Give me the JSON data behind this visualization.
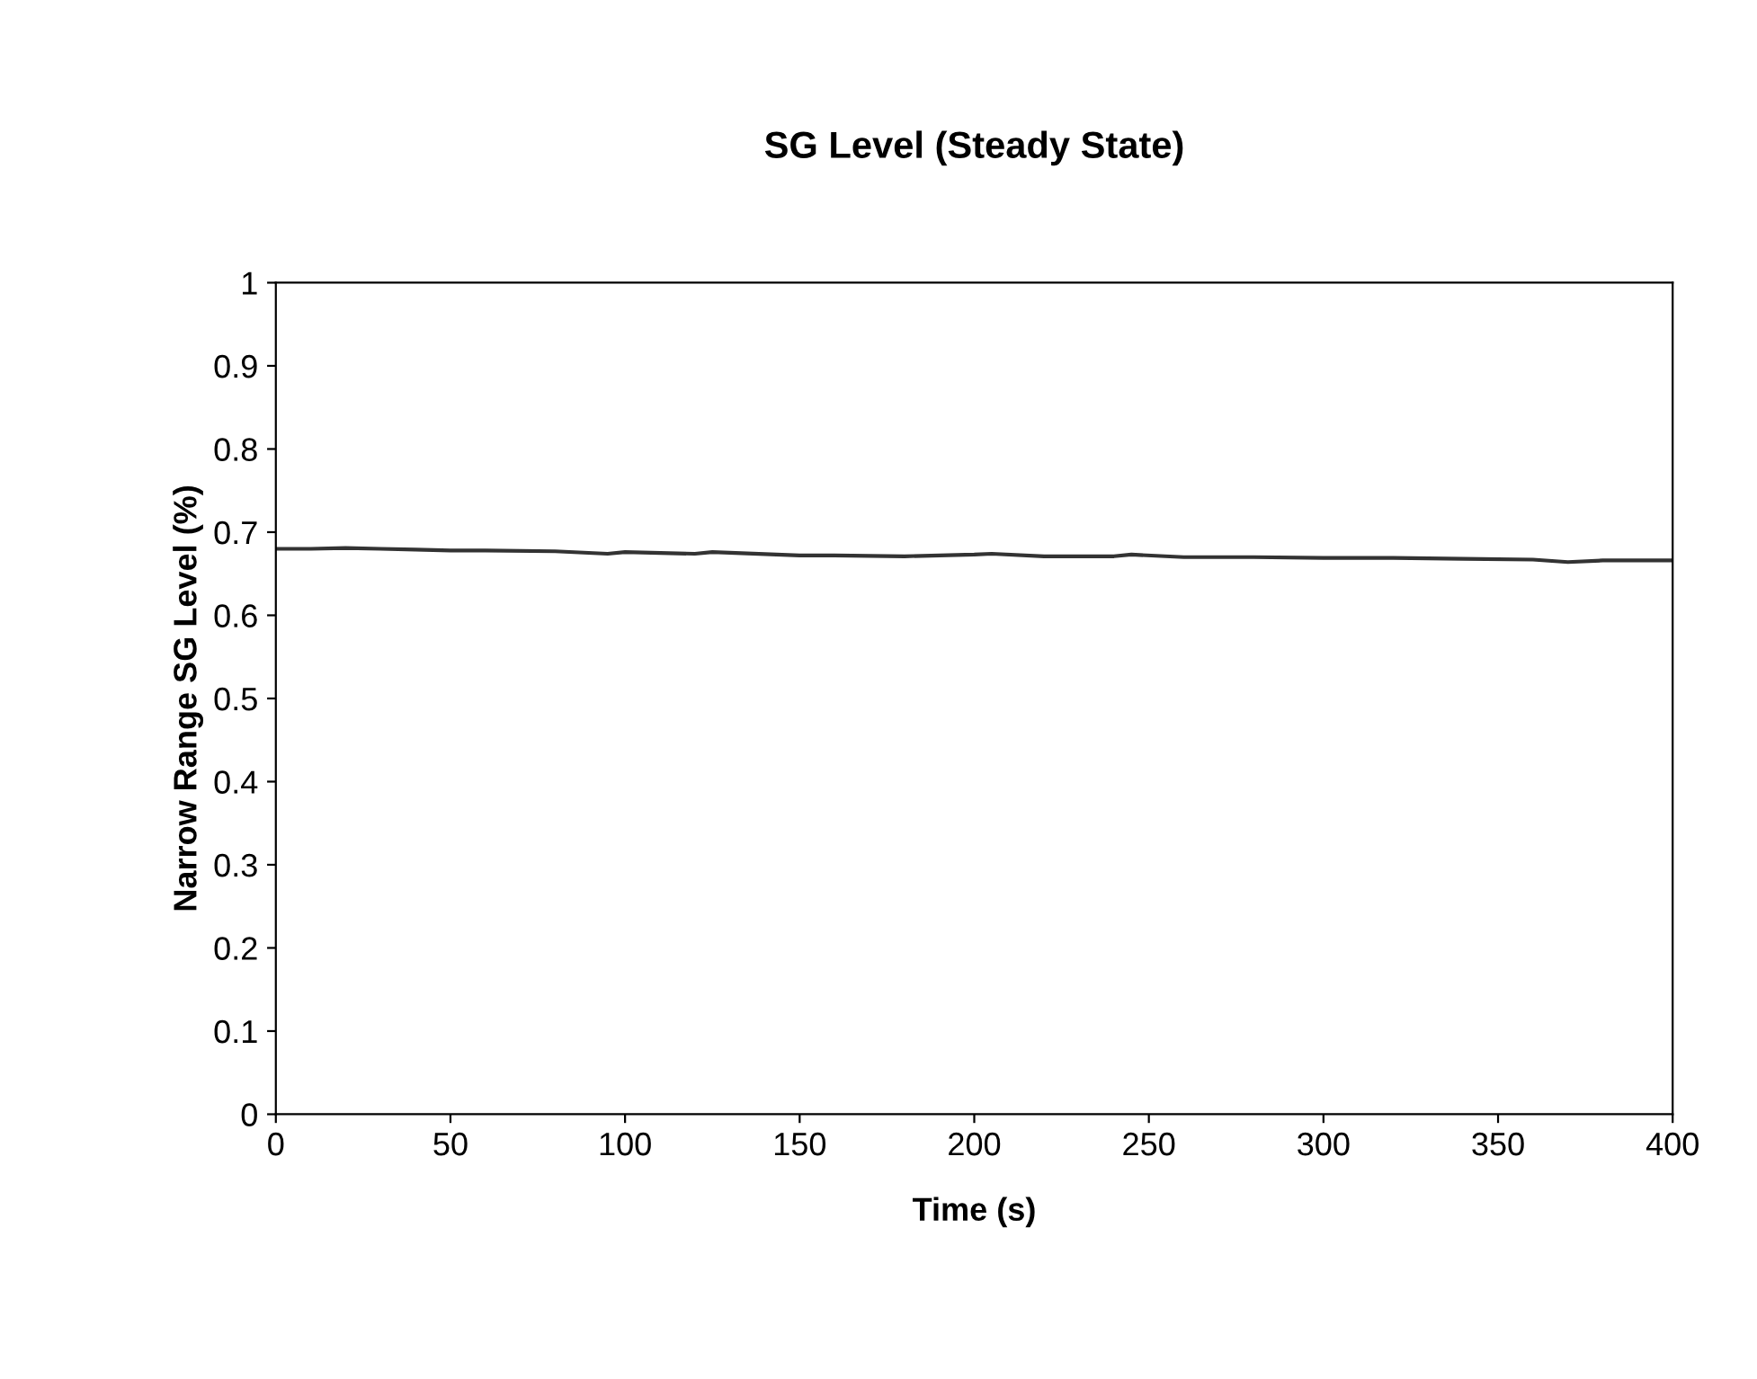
{
  "chart_data": {
    "type": "line",
    "title": "SG Level (Steady State)",
    "xlabel": "Time (s)",
    "ylabel": "Narrow Range SG Level (%)",
    "x": [
      0,
      10,
      20,
      30,
      40,
      50,
      60,
      80,
      95,
      100,
      120,
      125,
      150,
      160,
      180,
      200,
      205,
      220,
      240,
      245,
      260,
      280,
      300,
      320,
      340,
      360,
      370,
      380,
      400
    ],
    "series": [
      {
        "color": "#333333",
        "values": [
          0.68,
          0.68,
          0.681,
          0.68,
          0.679,
          0.678,
          0.678,
          0.677,
          0.674,
          0.676,
          0.674,
          0.676,
          0.672,
          0.672,
          0.671,
          0.673,
          0.674,
          0.671,
          0.671,
          0.673,
          0.67,
          0.67,
          0.669,
          0.669,
          0.668,
          0.667,
          0.664,
          0.666,
          0.666
        ]
      }
    ],
    "xlim": [
      0,
      400
    ],
    "xticks": [
      0,
      50,
      100,
      150,
      200,
      250,
      300,
      350,
      400
    ],
    "ylim": [
      0,
      1
    ],
    "yticks": [
      0,
      0.1,
      0.2,
      0.3,
      0.4,
      0.5,
      0.6,
      0.7,
      0.8,
      0.9,
      1
    ],
    "grid": false,
    "legend": false,
    "marker": "none",
    "line_style": "solid"
  }
}
